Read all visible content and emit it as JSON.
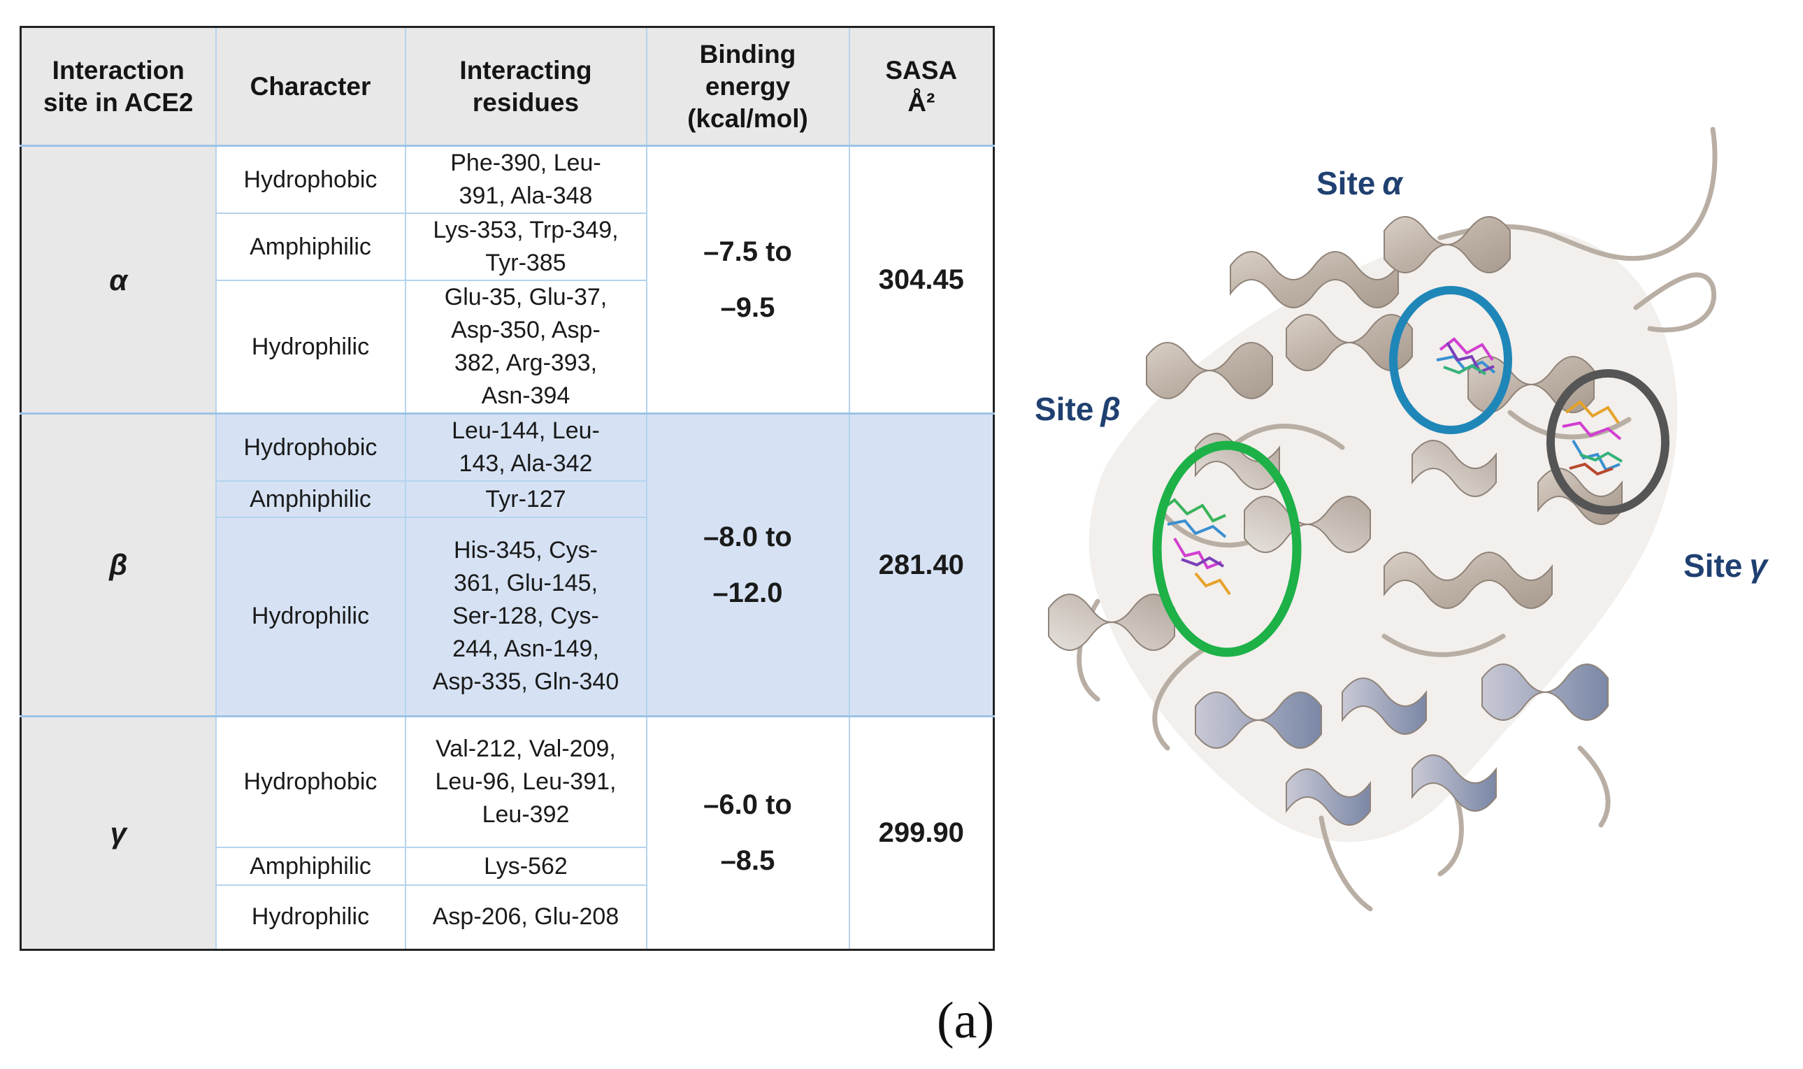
{
  "table": {
    "headers": {
      "site": [
        "Interaction",
        "site in ACE2"
      ],
      "character": [
        "Character"
      ],
      "residues": [
        "Interacting",
        "residues"
      ],
      "energy": [
        "Binding",
        "energy",
        "(kcal/mol)"
      ],
      "sasa": [
        "SASA",
        "Å²"
      ]
    },
    "sites": [
      {
        "site": "α",
        "rows": [
          {
            "character": "Hydrophobic",
            "residues": [
              "Phe-390, Leu-",
              "391, Ala-348"
            ]
          },
          {
            "character": "Amphiphilic",
            "residues": [
              "Lys-353, Trp-349,",
              "Tyr-385"
            ]
          },
          {
            "character": "Hydrophilic",
            "residues": [
              "Glu-35, Glu-37,",
              "Asp-350, Asp-",
              "382, Arg-393,",
              "Asn-394"
            ]
          }
        ],
        "energy": [
          "–7.5 to",
          "–9.5"
        ],
        "sasa": "304.45"
      },
      {
        "site": "β",
        "rows": [
          {
            "character": "Hydrophobic",
            "residues": [
              "Leu-144, Leu-",
              "143, Ala-342"
            ]
          },
          {
            "character": "Amphiphilic",
            "residues": [
              "Tyr-127"
            ]
          },
          {
            "character": "Hydrophilic",
            "residues": [
              "His-345, Cys-",
              "361, Glu-145,",
              "Ser-128, Cys-",
              "244, Asn-149,",
              "Asp-335, Gln-340"
            ]
          }
        ],
        "energy": [
          "–8.0 to",
          "–12.0"
        ],
        "sasa": "281.40"
      },
      {
        "site": "γ",
        "rows": [
          {
            "character": "Hydrophobic",
            "residues": [
              "Val-212, Val-209,",
              "Leu-96, Leu-391,",
              "Leu-392"
            ]
          },
          {
            "character": "Amphiphilic",
            "residues": [
              "Lys-562"
            ]
          },
          {
            "character": "Hydrophilic",
            "residues": [
              "Asp-206, Glu-208"
            ]
          }
        ],
        "energy": [
          "–6.0 to",
          "–8.5"
        ],
        "sasa": "299.90"
      }
    ]
  },
  "figure": {
    "site_labels": {
      "alpha": {
        "word": "Site",
        "greek": "α"
      },
      "beta": {
        "word": "Site",
        "greek": "β"
      },
      "gamma": {
        "word": "Site",
        "greek": "γ"
      }
    },
    "circle_colors": {
      "alpha": "#1f86b8",
      "beta": "#1db148",
      "gamma": "#555555"
    }
  },
  "caption": "(a)"
}
